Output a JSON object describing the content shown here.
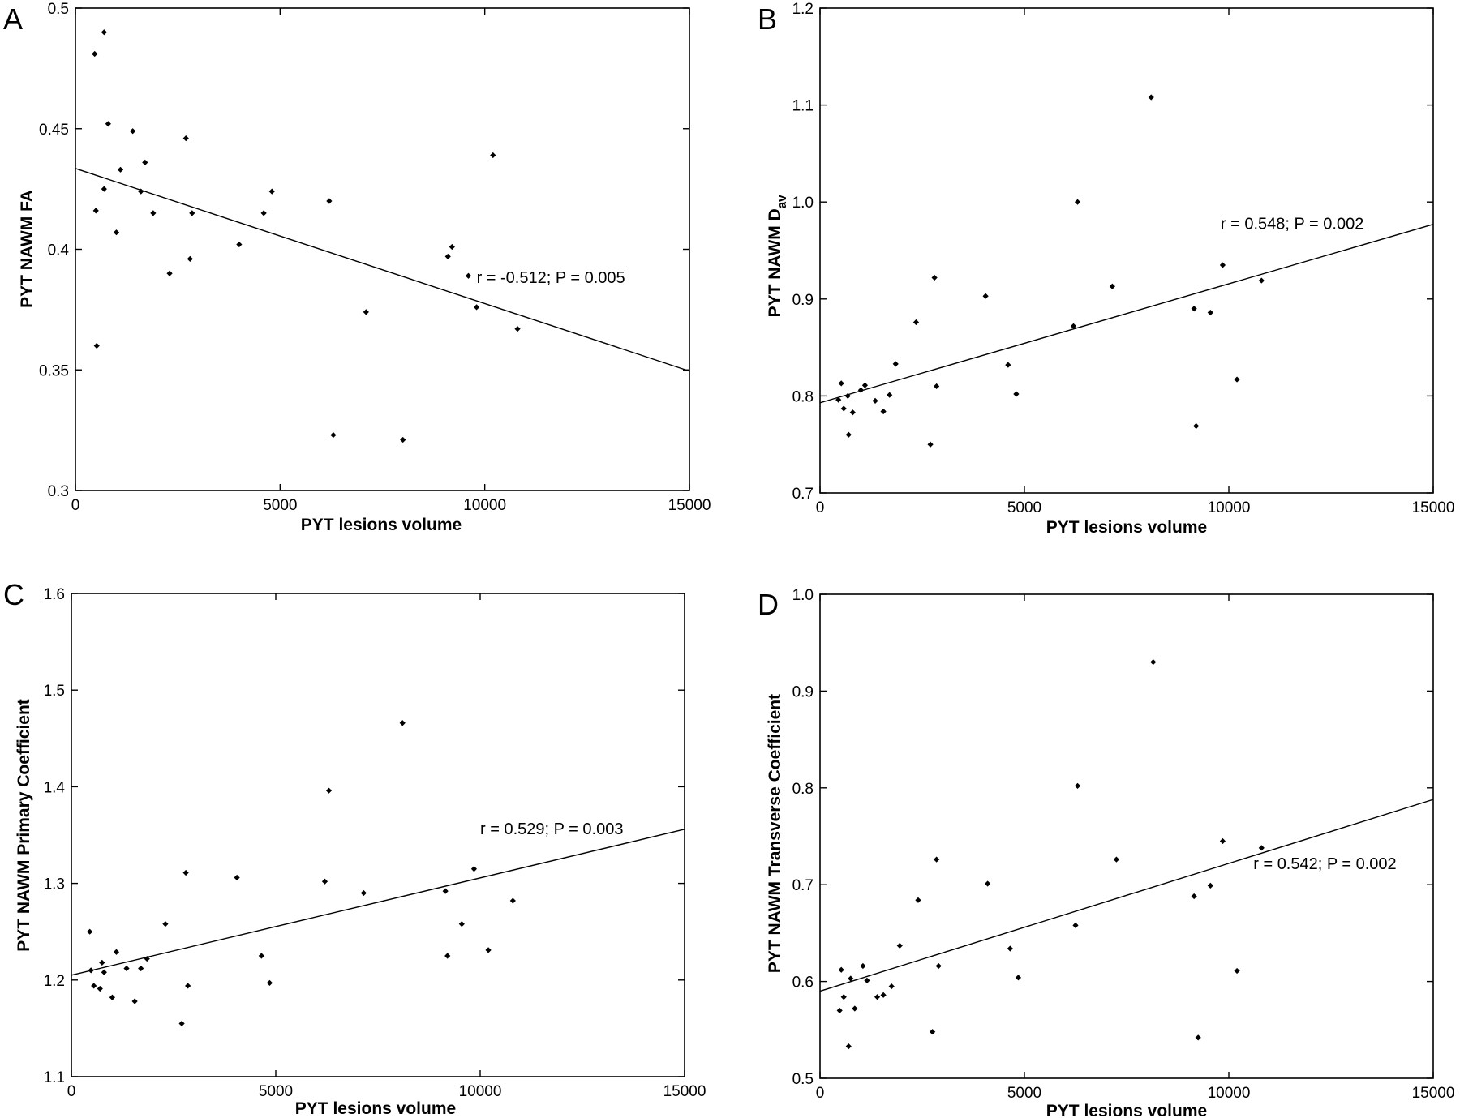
{
  "chart_data": [
    {
      "type": "scatter",
      "panel_label": "A",
      "xlabel": "PYT lesions volume",
      "ylabel": "PYT NAWM FA",
      "xlim": [
        0,
        15000
      ],
      "ylim": [
        0.3,
        0.5
      ],
      "xticks": [
        0,
        5000,
        10000,
        15000
      ],
      "xtick_labels": [
        "0",
        "5000",
        "10000",
        "15000"
      ],
      "yticks": [
        0.3,
        0.35,
        0.4,
        0.45,
        0.5
      ],
      "ytick_labels": [
        "0.3",
        "0.35",
        "0.4",
        "0.45",
        "0.5"
      ],
      "annotation": "r = -0.512; P = 0.005",
      "annotation_at": [
        9800,
        0.386
      ],
      "fit_line": {
        "x": [
          0,
          15000
        ],
        "y": [
          0.4335,
          0.3495
        ]
      },
      "points": [
        [
          470,
          0.481
        ],
        [
          700,
          0.49
        ],
        [
          500,
          0.416
        ],
        [
          520,
          0.36
        ],
        [
          700,
          0.425
        ],
        [
          800,
          0.452
        ],
        [
          1000,
          0.407
        ],
        [
          1100,
          0.433
        ],
        [
          1400,
          0.449
        ],
        [
          1600,
          0.424
        ],
        [
          1700,
          0.436
        ],
        [
          1900,
          0.415
        ],
        [
          2300,
          0.39
        ],
        [
          2700,
          0.446
        ],
        [
          2800,
          0.396
        ],
        [
          2850,
          0.415
        ],
        [
          4000,
          0.402
        ],
        [
          4600,
          0.415
        ],
        [
          4800,
          0.424
        ],
        [
          6200,
          0.42
        ],
        [
          6300,
          0.323
        ],
        [
          7100,
          0.374
        ],
        [
          8000,
          0.321
        ],
        [
          9100,
          0.397
        ],
        [
          9200,
          0.401
        ],
        [
          9600,
          0.389
        ],
        [
          9800,
          0.376
        ],
        [
          10200,
          0.439
        ],
        [
          10800,
          0.367
        ]
      ]
    },
    {
      "type": "scatter",
      "panel_label": "B",
      "xlabel": "PYT lesions volume",
      "ylabel": "PYT NAWM D",
      "ylabel_sub": "av",
      "xlim": [
        0,
        15000
      ],
      "ylim": [
        0.7,
        1.2
      ],
      "xticks": [
        0,
        5000,
        10000,
        15000
      ],
      "xtick_labels": [
        "0",
        "5000",
        "10000",
        "15000"
      ],
      "yticks": [
        0.7,
        0.8,
        0.9,
        1.0,
        1.1,
        1.2
      ],
      "ytick_labels": [
        "0.7",
        "0.8",
        "0.9",
        "1.0",
        "1.1",
        "1.2"
      ],
      "annotation": "r = 0.548; P = 0.002",
      "annotation_at": [
        9800,
        0.972
      ],
      "fit_line": {
        "x": [
          0,
          15000
        ],
        "y": [
          0.793,
          0.977
        ]
      },
      "points": [
        [
          450,
          0.796
        ],
        [
          520,
          0.813
        ],
        [
          580,
          0.787
        ],
        [
          680,
          0.8
        ],
        [
          700,
          0.76
        ],
        [
          800,
          0.783
        ],
        [
          1000,
          0.806
        ],
        [
          1100,
          0.811
        ],
        [
          1350,
          0.795
        ],
        [
          1550,
          0.784
        ],
        [
          1700,
          0.801
        ],
        [
          1850,
          0.833
        ],
        [
          2350,
          0.876
        ],
        [
          2700,
          0.75
        ],
        [
          2800,
          0.922
        ],
        [
          2850,
          0.81
        ],
        [
          4050,
          0.903
        ],
        [
          4600,
          0.832
        ],
        [
          4800,
          0.802
        ],
        [
          6200,
          0.872
        ],
        [
          6300,
          1.0
        ],
        [
          7150,
          0.913
        ],
        [
          8100,
          1.108
        ],
        [
          9150,
          0.89
        ],
        [
          9200,
          0.769
        ],
        [
          9550,
          0.886
        ],
        [
          9850,
          0.935
        ],
        [
          10200,
          0.817
        ],
        [
          10800,
          0.919
        ]
      ]
    },
    {
      "type": "scatter",
      "panel_label": "C",
      "xlabel": "PYT lesions volume",
      "ylabel": "PYT NAWM Primary Coefficient",
      "xlim": [
        0,
        15000
      ],
      "ylim": [
        1.1,
        1.6
      ],
      "xticks": [
        0,
        5000,
        10000,
        15000
      ],
      "xtick_labels": [
        "0",
        "5000",
        "10000",
        "15000"
      ],
      "yticks": [
        1.1,
        1.2,
        1.3,
        1.4,
        1.5,
        1.6
      ],
      "ytick_labels": [
        "1.1",
        "1.2",
        "1.3",
        "1.4",
        "1.5",
        "1.6"
      ],
      "annotation": "r = 0.529; P = 0.003",
      "annotation_at": [
        10000,
        1.351
      ],
      "fit_line": {
        "x": [
          0,
          15000
        ],
        "y": [
          1.205,
          1.356
        ]
      },
      "points": [
        [
          450,
          1.25
        ],
        [
          480,
          1.21
        ],
        [
          550,
          1.194
        ],
        [
          700,
          1.191
        ],
        [
          750,
          1.218
        ],
        [
          800,
          1.208
        ],
        [
          1000,
          1.182
        ],
        [
          1100,
          1.229
        ],
        [
          1350,
          1.212
        ],
        [
          1550,
          1.178
        ],
        [
          1700,
          1.212
        ],
        [
          1850,
          1.222
        ],
        [
          2300,
          1.258
        ],
        [
          2700,
          1.155
        ],
        [
          2800,
          1.311
        ],
        [
          2850,
          1.194
        ],
        [
          4050,
          1.306
        ],
        [
          4650,
          1.225
        ],
        [
          4850,
          1.197
        ],
        [
          6200,
          1.302
        ],
        [
          6300,
          1.396
        ],
        [
          7150,
          1.29
        ],
        [
          8100,
          1.466
        ],
        [
          9150,
          1.292
        ],
        [
          9200,
          1.225
        ],
        [
          9550,
          1.258
        ],
        [
          9850,
          1.315
        ],
        [
          10200,
          1.231
        ],
        [
          10800,
          1.282
        ]
      ]
    },
    {
      "type": "scatter",
      "panel_label": "D",
      "xlabel": "PYT lesions volume",
      "ylabel": "PYT NAWM Transverse Coefficient",
      "xlim": [
        0,
        15000
      ],
      "ylim": [
        0.5,
        1.0
      ],
      "xticks": [
        0,
        5000,
        10000,
        15000
      ],
      "xtick_labels": [
        "0",
        "5000",
        "10000",
        "15000"
      ],
      "yticks": [
        0.5,
        0.6,
        0.7,
        0.8,
        0.9,
        1.0
      ],
      "ytick_labels": [
        "0.5",
        "0.6",
        "0.7",
        "0.8",
        "0.9",
        "1.0"
      ],
      "annotation": "r = 0.542; P = 0.002",
      "annotation_at": [
        10600,
        0.716
      ],
      "fit_line": {
        "x": [
          0,
          15000
        ],
        "y": [
          0.59,
          0.788
        ]
      },
      "points": [
        [
          480,
          0.57
        ],
        [
          520,
          0.612
        ],
        [
          580,
          0.584
        ],
        [
          700,
          0.533
        ],
        [
          750,
          0.603
        ],
        [
          850,
          0.572
        ],
        [
          1050,
          0.616
        ],
        [
          1150,
          0.601
        ],
        [
          1400,
          0.584
        ],
        [
          1550,
          0.586
        ],
        [
          1750,
          0.595
        ],
        [
          1950,
          0.637
        ],
        [
          2400,
          0.684
        ],
        [
          2750,
          0.548
        ],
        [
          2850,
          0.726
        ],
        [
          2900,
          0.616
        ],
        [
          4100,
          0.701
        ],
        [
          4650,
          0.634
        ],
        [
          4850,
          0.604
        ],
        [
          6250,
          0.658
        ],
        [
          6300,
          0.802
        ],
        [
          7250,
          0.726
        ],
        [
          8150,
          0.93
        ],
        [
          9150,
          0.688
        ],
        [
          9250,
          0.542
        ],
        [
          9550,
          0.699
        ],
        [
          9850,
          0.745
        ],
        [
          10200,
          0.611
        ],
        [
          10800,
          0.738
        ]
      ]
    }
  ]
}
